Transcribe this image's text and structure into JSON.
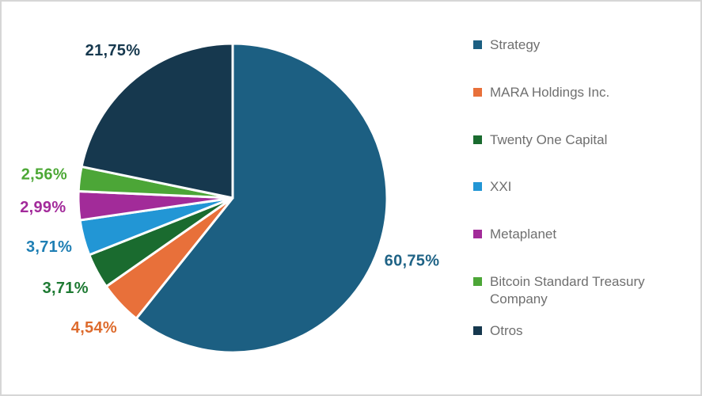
{
  "chart_data": {
    "type": "pie",
    "title": "",
    "start_angle_deg": 0,
    "direction": "clockwise",
    "legend_position": "right",
    "separator_color": "#ffffff",
    "slices": [
      {
        "name": "Strategy",
        "value": 60.75,
        "label": "60,75%",
        "color": "#1c5f82",
        "label_color": "#1f6386"
      },
      {
        "name": "MARA Holdings Inc.",
        "value": 4.54,
        "label": "4,54%",
        "color": "#e8703a",
        "label_color": "#dd6b2d"
      },
      {
        "name": "Twenty One Capital",
        "value": 3.71,
        "label": "3,71%",
        "color": "#1a6b2f",
        "label_color": "#1e7a33"
      },
      {
        "name": "XXI",
        "value": 3.71,
        "label": "3,71%",
        "color": "#2296d5",
        "label_color": "#1f7fb4"
      },
      {
        "name": "Metaplanet",
        "value": 2.99,
        "label": "2,99%",
        "color": "#a22b99",
        "label_color": "#a32b9b"
      },
      {
        "name": "Bitcoin Standard Treasury Company",
        "value": 2.56,
        "label": "2,56%",
        "color": "#4ca637",
        "label_color": "#4da836"
      },
      {
        "name": "Otros",
        "value": 21.75,
        "label": "21,75%",
        "color": "#16384e",
        "label_color": "#16384e"
      }
    ]
  }
}
